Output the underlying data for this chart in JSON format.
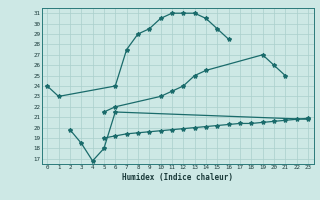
{
  "title": "",
  "xlabel": "Humidex (Indice chaleur)",
  "bg_color": "#cde8e5",
  "line_color": "#1a6b6b",
  "grid_color": "#aacfcc",
  "xlim": [
    -0.5,
    23.5
  ],
  "ylim": [
    16.5,
    31.5
  ],
  "yticks": [
    17,
    18,
    19,
    20,
    21,
    22,
    23,
    24,
    25,
    26,
    27,
    28,
    29,
    30,
    31
  ],
  "xticks": [
    0,
    1,
    2,
    3,
    4,
    5,
    6,
    7,
    8,
    9,
    10,
    11,
    12,
    13,
    14,
    15,
    16,
    17,
    18,
    19,
    20,
    21,
    22,
    23
  ],
  "line1_x": [
    0,
    1,
    6,
    7,
    8,
    9,
    10,
    11,
    12,
    13,
    14,
    15,
    16
  ],
  "line1_y": [
    24.0,
    23.0,
    24.0,
    27.5,
    29.0,
    29.5,
    30.5,
    31.0,
    31.0,
    31.0,
    30.5,
    29.5,
    28.5
  ],
  "line2_x": [
    5,
    6,
    10,
    11,
    12,
    13,
    14,
    19,
    20,
    21
  ],
  "line2_y": [
    21.5,
    22.0,
    23.0,
    23.5,
    24.0,
    25.0,
    25.5,
    27.0,
    26.0,
    25.0
  ],
  "line3_x": [
    2,
    3,
    4,
    5,
    6,
    23
  ],
  "line3_y": [
    19.8,
    18.5,
    16.8,
    18.0,
    21.5,
    20.8
  ],
  "line4_x": [
    5,
    6,
    7,
    8,
    9,
    10,
    11,
    12,
    13,
    14,
    15,
    16,
    17,
    18,
    19,
    20,
    21,
    22,
    23
  ],
  "line4_y": [
    19.0,
    19.2,
    19.4,
    19.5,
    19.6,
    19.7,
    19.8,
    19.9,
    20.0,
    20.1,
    20.2,
    20.3,
    20.4,
    20.4,
    20.5,
    20.6,
    20.7,
    20.8,
    20.9
  ]
}
